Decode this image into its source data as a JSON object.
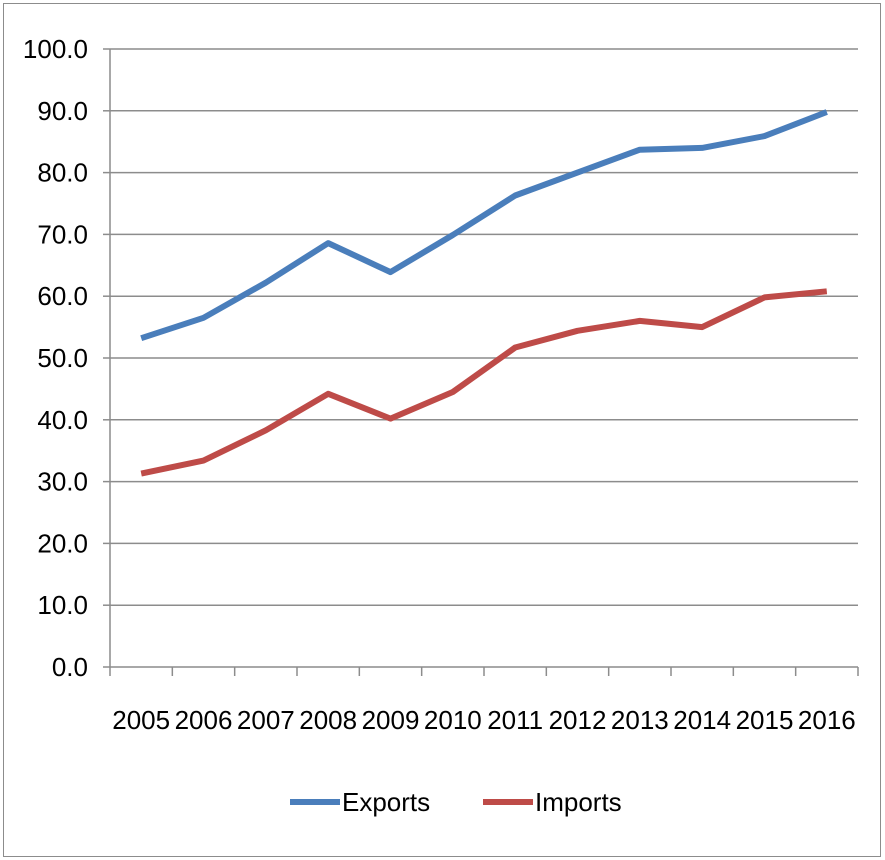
{
  "chart_data": {
    "type": "line",
    "title": "",
    "xlabel": "",
    "ylabel": "",
    "categories": [
      "2005",
      "2006",
      "2007",
      "2008",
      "2009",
      "2010",
      "2011",
      "2012",
      "2013",
      "2014",
      "2015",
      "2016"
    ],
    "ylim": [
      0,
      100
    ],
    "yticks": [
      "0.0",
      "10.0",
      "20.0",
      "30.0",
      "40.0",
      "50.0",
      "60.0",
      "70.0",
      "80.0",
      "90.0",
      "100.0"
    ],
    "grid": true,
    "legend_position": "bottom",
    "series": [
      {
        "name": "Exports",
        "color": "#4a7ebb",
        "values": [
          53.2,
          56.5,
          62.2,
          68.6,
          63.9,
          69.9,
          76.3,
          80.0,
          83.7,
          84.0,
          85.9,
          89.8
        ]
      },
      {
        "name": "Imports",
        "color": "#be4b48",
        "values": [
          31.3,
          33.4,
          38.3,
          44.2,
          40.2,
          44.5,
          51.7,
          54.4,
          56.0,
          55.0,
          59.8,
          60.8
        ]
      }
    ]
  }
}
